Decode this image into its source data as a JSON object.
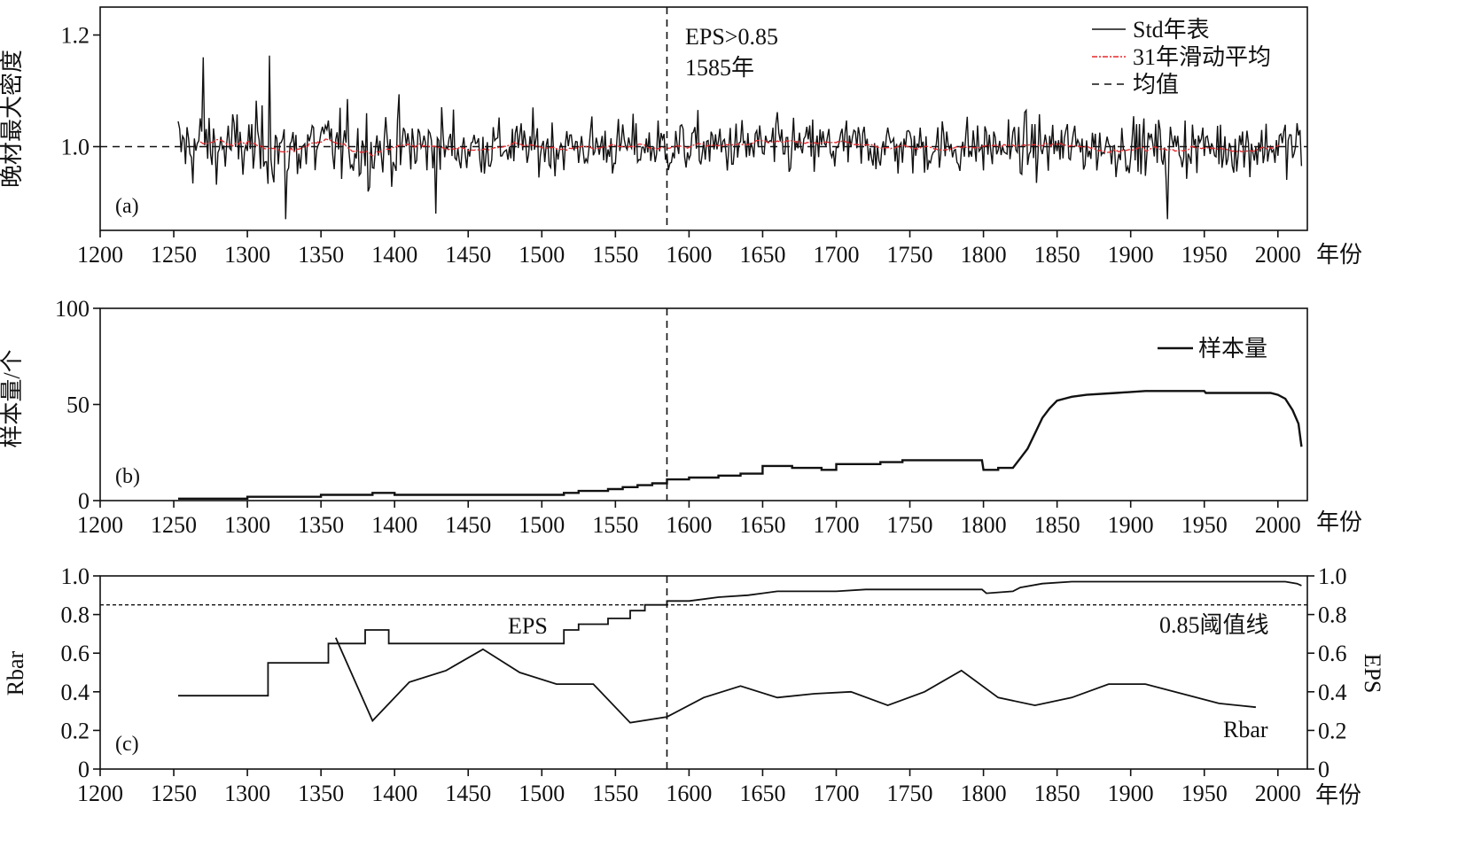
{
  "figure": {
    "xunit": "年份"
  },
  "chart_data": [
    {
      "type": "line",
      "panel": "(a)",
      "ylabel": "晚材最大密度",
      "xunit": "年份",
      "xlim": [
        1200,
        2020
      ],
      "xticks": [
        1200,
        1250,
        1300,
        1350,
        1400,
        1450,
        1500,
        1550,
        1600,
        1650,
        1700,
        1750,
        1800,
        1850,
        1900,
        1950,
        2000
      ],
      "ylim": [
        0.85,
        1.25
      ],
      "yticks": [
        "1.0",
        "1.2"
      ],
      "yticks_values": [
        1.0,
        1.2
      ],
      "annotation": [
        "EPS>0.85",
        "1585年"
      ],
      "vline": 1585,
      "mean_line": 1.0,
      "legend": [
        "Std年表",
        "31年滑动平均",
        "均值"
      ],
      "legend_position": "top-right",
      "colors": {
        "std": "#111111",
        "smooth": "#e8262a",
        "mean": "#111111"
      },
      "series": [
        {
          "name": "Std年表",
          "x_start": 1253,
          "x_end": 2016,
          "values": []
        },
        {
          "name": "31年滑动平均",
          "x_start": 1268,
          "x_end": 2001,
          "values": []
        }
      ]
    },
    {
      "type": "line",
      "panel": "(b)",
      "ylabel": "样本量/个",
      "xunit": "年份",
      "xlim": [
        1200,
        2020
      ],
      "xticks": [
        1200,
        1250,
        1300,
        1350,
        1400,
        1450,
        1500,
        1550,
        1600,
        1650,
        1700,
        1750,
        1800,
        1850,
        1900,
        1950,
        2000
      ],
      "ylim": [
        0,
        100
      ],
      "yticks": [
        "0",
        "50",
        "100"
      ],
      "yticks_values": [
        0,
        50,
        100
      ],
      "vline": 1585,
      "legend": [
        "样本量"
      ],
      "legend_position": "top-right",
      "series": [
        {
          "name": "样本量",
          "points": [
            [
              1253,
              1
            ],
            [
              1300,
              1
            ],
            [
              1300,
              2
            ],
            [
              1350,
              2
            ],
            [
              1350,
              3
            ],
            [
              1385,
              3
            ],
            [
              1385,
              4
            ],
            [
              1400,
              4
            ],
            [
              1400,
              3
            ],
            [
              1515,
              3
            ],
            [
              1515,
              4
            ],
            [
              1525,
              4
            ],
            [
              1525,
              5
            ],
            [
              1545,
              5
            ],
            [
              1545,
              6
            ],
            [
              1555,
              6
            ],
            [
              1555,
              7
            ],
            [
              1565,
              7
            ],
            [
              1565,
              8
            ],
            [
              1575,
              8
            ],
            [
              1575,
              9
            ],
            [
              1585,
              9
            ],
            [
              1585,
              11
            ],
            [
              1600,
              11
            ],
            [
              1600,
              12
            ],
            [
              1620,
              12
            ],
            [
              1620,
              13
            ],
            [
              1635,
              13
            ],
            [
              1635,
              14
            ],
            [
              1650,
              14
            ],
            [
              1650,
              18
            ],
            [
              1670,
              18
            ],
            [
              1670,
              17
            ],
            [
              1690,
              17
            ],
            [
              1690,
              16
            ],
            [
              1700,
              16
            ],
            [
              1700,
              19
            ],
            [
              1730,
              19
            ],
            [
              1730,
              20
            ],
            [
              1745,
              20
            ],
            [
              1745,
              21
            ],
            [
              1799,
              21
            ],
            [
              1800,
              16
            ],
            [
              1810,
              16
            ],
            [
              1810,
              17
            ],
            [
              1820,
              17
            ],
            [
              1825,
              22
            ],
            [
              1830,
              27
            ],
            [
              1835,
              35
            ],
            [
              1840,
              43
            ],
            [
              1845,
              48
            ],
            [
              1850,
              52
            ],
            [
              1855,
              53
            ],
            [
              1860,
              54
            ],
            [
              1870,
              55
            ],
            [
              1890,
              56
            ],
            [
              1910,
              57
            ],
            [
              1950,
              57
            ],
            [
              1951,
              56
            ],
            [
              1995,
              56
            ],
            [
              2000,
              55
            ],
            [
              2005,
              53
            ],
            [
              2010,
              47
            ],
            [
              2014,
              40
            ],
            [
              2016,
              28
            ]
          ]
        }
      ]
    },
    {
      "type": "line",
      "panel": "(c)",
      "ylabel": "Rbar",
      "y2label": "EPS",
      "xunit": "年份",
      "xlim": [
        1200,
        2020
      ],
      "xticks": [
        1200,
        1250,
        1300,
        1350,
        1400,
        1450,
        1500,
        1550,
        1600,
        1650,
        1700,
        1750,
        1800,
        1850,
        1900,
        1950,
        2000
      ],
      "ylim": [
        0,
        1.0
      ],
      "yticks": [
        "0",
        "0.2",
        "0.4",
        "0.6",
        "0.8",
        "1.0"
      ],
      "yticks_values": [
        0,
        0.2,
        0.4,
        0.6,
        0.8,
        1.0
      ],
      "y2lim": [
        0,
        1.0
      ],
      "y2ticks": [
        "0",
        "0.2",
        "0.4",
        "0.6",
        "0.8",
        "1.0"
      ],
      "y2ticks_values": [
        0,
        0.2,
        0.4,
        0.6,
        0.8,
        1.0
      ],
      "vline": 1585,
      "threshold": 0.85,
      "threshold_label": "0.85阈值线",
      "series_labels": {
        "eps": "EPS",
        "rbar": "Rbar"
      },
      "series": [
        {
          "name": "EPS",
          "points": [
            [
              1253,
              0.38
            ],
            [
              1314,
              0.38
            ],
            [
              1314,
              0.55
            ],
            [
              1355,
              0.55
            ],
            [
              1355,
              0.65
            ],
            [
              1380,
              0.65
            ],
            [
              1380,
              0.72
            ],
            [
              1396,
              0.72
            ],
            [
              1396,
              0.65
            ],
            [
              1515,
              0.65
            ],
            [
              1515,
              0.72
            ],
            [
              1525,
              0.72
            ],
            [
              1525,
              0.75
            ],
            [
              1545,
              0.75
            ],
            [
              1545,
              0.78
            ],
            [
              1560,
              0.78
            ],
            [
              1560,
              0.82
            ],
            [
              1570,
              0.82
            ],
            [
              1570,
              0.85
            ],
            [
              1585,
              0.85
            ],
            [
              1585,
              0.87
            ],
            [
              1600,
              0.87
            ],
            [
              1610,
              0.88
            ],
            [
              1620,
              0.89
            ],
            [
              1640,
              0.9
            ],
            [
              1650,
              0.91
            ],
            [
              1660,
              0.92
            ],
            [
              1700,
              0.92
            ],
            [
              1720,
              0.93
            ],
            [
              1740,
              0.93
            ],
            [
              1799,
              0.93
            ],
            [
              1802,
              0.91
            ],
            [
              1820,
              0.92
            ],
            [
              1825,
              0.94
            ],
            [
              1840,
              0.96
            ],
            [
              1860,
              0.97
            ],
            [
              1990,
              0.97
            ],
            [
              2005,
              0.97
            ],
            [
              2013,
              0.96
            ],
            [
              2016,
              0.95
            ]
          ]
        },
        {
          "name": "Rbar",
          "points": [
            [
              1360,
              0.68
            ],
            [
              1385,
              0.25
            ],
            [
              1410,
              0.45
            ],
            [
              1435,
              0.51
            ],
            [
              1460,
              0.62
            ],
            [
              1485,
              0.5
            ],
            [
              1510,
              0.44
            ],
            [
              1535,
              0.44
            ],
            [
              1560,
              0.24
            ],
            [
              1585,
              0.27
            ],
            [
              1610,
              0.37
            ],
            [
              1635,
              0.43
            ],
            [
              1660,
              0.37
            ],
            [
              1685,
              0.39
            ],
            [
              1710,
              0.4
            ],
            [
              1735,
              0.33
            ],
            [
              1760,
              0.4
            ],
            [
              1785,
              0.51
            ],
            [
              1810,
              0.37
            ],
            [
              1835,
              0.33
            ],
            [
              1860,
              0.37
            ],
            [
              1885,
              0.44
            ],
            [
              1910,
              0.44
            ],
            [
              1935,
              0.39
            ],
            [
              1960,
              0.34
            ],
            [
              1985,
              0.32
            ]
          ]
        }
      ]
    }
  ]
}
